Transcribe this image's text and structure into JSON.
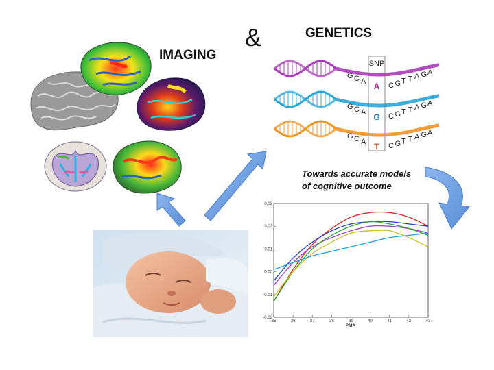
{
  "labels": {
    "ampersand": "&",
    "imaging": "IMAGING",
    "genetics": "GENETICS",
    "models_caption_line1": "Towards accurate models",
    "models_caption_line2": "of cognitive outcome"
  },
  "dna": {
    "snp_label": "SNP",
    "rows": [
      {
        "before": [
          "G",
          "C",
          "A"
        ],
        "snp": "A",
        "after": [
          "C",
          "G",
          "T",
          "T",
          "A",
          "G",
          "A"
        ],
        "snp_color": "#b0268a",
        "strand_color": "#a93ab8"
      },
      {
        "before": [
          "G",
          "C",
          "A"
        ],
        "snp": "G",
        "after": [
          "C",
          "G",
          "T",
          "T",
          "A",
          "G",
          "A"
        ],
        "snp_color": "#1f7bbf",
        "strand_color": "#27a4d8"
      },
      {
        "before": [
          "G",
          "C",
          "A"
        ],
        "snp": "T",
        "after": [
          "C",
          "G",
          "T",
          "T",
          "A",
          "G",
          "A"
        ],
        "snp_color": "#e0501e",
        "strand_color": "#f29421"
      }
    ]
  },
  "chart_data": {
    "type": "line",
    "xlabel": "PMA",
    "ylabel": "",
    "xlim": [
      35,
      43
    ],
    "ylim": [
      -0.02,
      0.03
    ],
    "x_ticks": [
      "35",
      "36",
      "37",
      "38",
      "39",
      "40",
      "41",
      "42",
      "43"
    ],
    "y_ticks": [
      "0.03",
      "0.02",
      "0.01",
      "0.00",
      "-0.01",
      "-0.02"
    ],
    "x": [
      35,
      36,
      37,
      38,
      39,
      40,
      41,
      42,
      43
    ],
    "series": [
      {
        "color": "#d62728",
        "values": [
          -0.013,
          0.001,
          0.012,
          0.019,
          0.024,
          0.026,
          0.026,
          0.024,
          0.02
        ]
      },
      {
        "color": "#1f3fbf",
        "values": [
          -0.004,
          0.006,
          0.013,
          0.018,
          0.021,
          0.022,
          0.022,
          0.021,
          0.02
        ]
      },
      {
        "color": "#9c3fbf",
        "values": [
          -0.006,
          0.004,
          0.011,
          0.015,
          0.018,
          0.02,
          0.02,
          0.019,
          0.017
        ]
      },
      {
        "color": "#2ca02c",
        "values": [
          -0.013,
          0.0,
          0.01,
          0.016,
          0.02,
          0.022,
          0.021,
          0.019,
          0.016
        ]
      },
      {
        "color": "#c8c020",
        "values": [
          -0.011,
          0.0,
          0.008,
          0.013,
          0.017,
          0.018,
          0.018,
          0.015,
          0.011
        ]
      },
      {
        "color": "#1f9fd6",
        "values": [
          0.001,
          0.004,
          0.007,
          0.009,
          0.011,
          0.013,
          0.015,
          0.016,
          0.017
        ]
      }
    ],
    "grid": false,
    "legend": "none"
  },
  "colors": {
    "arrow_fill": "#6f9fe3",
    "arrow_stroke": "#4a7bc7"
  }
}
